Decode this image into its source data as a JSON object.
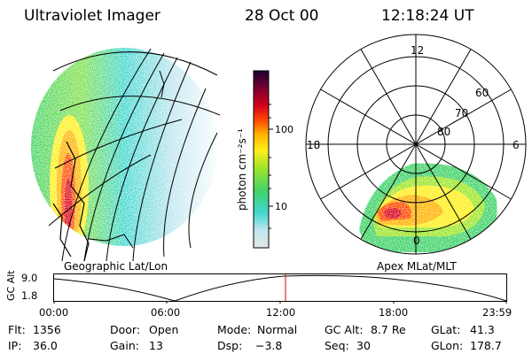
{
  "header": {
    "instrument": "Ultraviolet Imager",
    "date": "28 Oct 00",
    "time": "12:18:24 UT"
  },
  "geo_panel": {
    "caption": "Geographic Lat/Lon"
  },
  "colorbar": {
    "unit_label": "photon cm⁻²s⁻¹",
    "ticks": [
      "100",
      "10"
    ],
    "scale": "log",
    "colors": [
      "#e6e6e6",
      "#bfe6ef",
      "#3fd6cf",
      "#42d36a",
      "#9ee62b",
      "#ffef1a",
      "#ffb300",
      "#ff4a00",
      "#d8001a",
      "#7a0030",
      "#1a0033"
    ]
  },
  "polar_panel": {
    "caption": "Apex MLat/MLT",
    "mlt_labels": [
      "12",
      "18",
      "6",
      "0"
    ],
    "mlat_labels": [
      "60",
      "70",
      "80"
    ]
  },
  "altitude_strip": {
    "ylabel": "GC Alt",
    "yticks": [
      "9.0",
      "1.8"
    ],
    "xticks": [
      "00:00",
      "06:00",
      "12:00",
      "18:00",
      "23:59"
    ],
    "marker_time": "12:18"
  },
  "info": {
    "flt_label": "Flt:",
    "flt_value": "1356",
    "ip_label": "IP:",
    "ip_value": "36.0",
    "door_label": "Door:",
    "door_value": "Open",
    "gain_label": "Gain:",
    "gain_value": "13",
    "mode_label": "Mode:",
    "mode_value": "Normal",
    "dsp_label": "Dsp:",
    "dsp_value": "−3.8",
    "gcalt_label": "GC Alt:",
    "gcalt_value": "8.7 Re",
    "seq_label": "Seq:",
    "seq_value": "30",
    "glat_label": "GLat:",
    "glat_value": "41.3",
    "glon_label": "GLon:",
    "glon_value": "178.7"
  }
}
